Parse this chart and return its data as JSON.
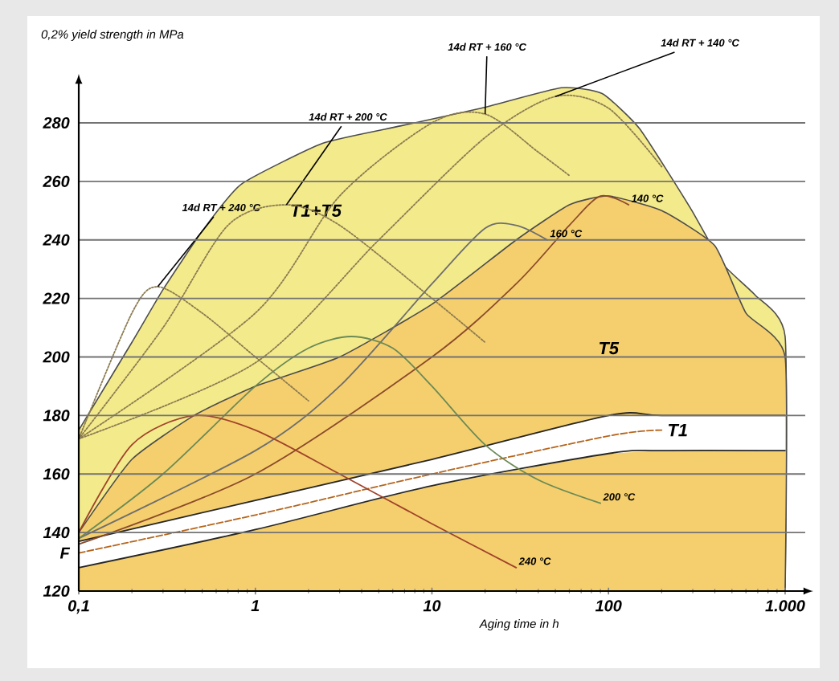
{
  "chart_data": {
    "type": "line",
    "title": "0,2% yield strength in MPa",
    "xlabel": "Aging time in h",
    "log": "x",
    "xlim": [
      0.1,
      1300
    ],
    "ylim": [
      120,
      294
    ],
    "xticks": [
      {
        "value": 0.1,
        "label": "0,1"
      },
      1,
      10,
      100,
      {
        "value": 1000,
        "label": "1.000"
      }
    ],
    "yticks": [
      120,
      {
        "value": 133,
        "label": "F"
      },
      140,
      160,
      180,
      200,
      220,
      240,
      260,
      280
    ],
    "grid": "y",
    "marker": "none",
    "series": [
      {
        "name": "T1+T5",
        "type": "area",
        "color": "#f3ea8c",
        "x": [
          0.1,
          0.2,
          0.3,
          0.5,
          0.83,
          2.4,
          6.7,
          19,
          54,
          92,
          150,
          290,
          440,
          680,
          1000
        ],
        "values": [
          175,
          205,
          223,
          243,
          259,
          273,
          279,
          285,
          292,
          290,
          278,
          251,
          232,
          221,
          207
        ]
      },
      {
        "name": "T5",
        "type": "area",
        "color": "#f5cf6e",
        "x": [
          0.1,
          0.2,
          0.45,
          1,
          3,
          10,
          30,
          60,
          100,
          200,
          400,
          600,
          1000
        ],
        "values": [
          140,
          165,
          180,
          190,
          200,
          218,
          240,
          252,
          255,
          250,
          238,
          215,
          200
        ]
      },
      {
        "x": [
          0.1,
          1,
          10,
          100,
          200,
          1000
        ],
        "values": [
          137,
          151,
          165,
          180,
          180,
          180
        ],
        "color": "#262626"
      },
      {
        "x": [
          0.1,
          1,
          10,
          100,
          200,
          1000
        ],
        "values": [
          128,
          141,
          156,
          167,
          168,
          168
        ],
        "color": "#262626"
      },
      {
        "name": "T1",
        "type": "line",
        "color": "#b5651d",
        "line_style": "dashed",
        "x": [
          0.1,
          1,
          10,
          100,
          200,
          1000
        ],
        "values": [
          133,
          146,
          160,
          173,
          175,
          null
        ],
        "lower": [
          128,
          141,
          156,
          167,
          168,
          168
        ],
        "upper": [
          137,
          151,
          165,
          180,
          180,
          180
        ]
      },
      {
        "name": "14d RT + 240 °C",
        "type": "line",
        "color": "#8a7a50",
        "line_style": "dotted",
        "x": [
          0.1,
          0.2,
          0.28,
          0.5,
          1,
          2
        ],
        "values": [
          172,
          215,
          224,
          215,
          200,
          185
        ]
      },
      {
        "name": "14d RT + 200 °C",
        "type": "line",
        "color": "#8a7a50",
        "line_style": "dotted",
        "x": [
          0.1,
          0.3,
          0.7,
          1.5,
          3,
          10,
          20
        ],
        "values": [
          172,
          210,
          245,
          252,
          245,
          220,
          205
        ]
      },
      {
        "name": "14d RT + 160 °C",
        "type": "line",
        "color": "#8a7a50",
        "line_style": "dotted",
        "x": [
          0.1,
          1,
          3,
          10,
          20,
          40,
          60
        ],
        "values": [
          172,
          215,
          255,
          280,
          283,
          270,
          262
        ]
      },
      {
        "name": "14d RT + 140 °C",
        "type": "line",
        "color": "#8a7a50",
        "line_style": "dotted",
        "x": [
          0.1,
          1,
          5,
          20,
          50,
          100,
          200
        ],
        "values": [
          172,
          198,
          240,
          275,
          289,
          285,
          265
        ]
      },
      {
        "name": "140 °C",
        "type": "line",
        "color": "#8b4a2b",
        "x": [
          0.1,
          1,
          10,
          30,
          60,
          90,
          130
        ],
        "values": [
          136,
          160,
          200,
          225,
          245,
          255,
          252
        ]
      },
      {
        "name": "160 °C",
        "type": "line",
        "color": "#6e6e6e",
        "x": [
          0.1,
          1,
          3,
          10,
          20,
          30,
          45
        ],
        "values": [
          138,
          168,
          190,
          225,
          244,
          245,
          240
        ]
      },
      {
        "name": "200 °C",
        "type": "line",
        "color": "#6b8a55",
        "x": [
          0.1,
          0.3,
          1,
          2,
          3.5,
          6,
          10,
          20,
          40,
          90
        ],
        "values": [
          138,
          160,
          190,
          203,
          207,
          203,
          190,
          170,
          158,
          150
        ]
      },
      {
        "name": "240 °C",
        "type": "line",
        "color": "#a0432a",
        "x": [
          0.1,
          0.2,
          0.45,
          1,
          3,
          10,
          30
        ],
        "values": [
          140,
          170,
          180,
          175,
          160,
          143,
          128
        ]
      }
    ]
  }
}
